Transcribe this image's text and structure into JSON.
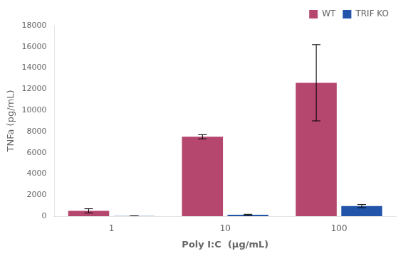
{
  "chart_data": {
    "type": "bar",
    "xlabel": "Poly I:C  (μg/mL)",
    "ylabel": "TNFa (pg/mL)",
    "categories": [
      "1",
      "10",
      "100"
    ],
    "series": [
      {
        "name": "WT",
        "color": "#b5476e",
        "values": [
          500,
          7500,
          12600
        ],
        "errors": [
          200,
          200,
          3600
        ]
      },
      {
        "name": "TRIF KO",
        "color": "#2255aa",
        "values": [
          20,
          130,
          950
        ],
        "errors": [
          10,
          50,
          150
        ]
      }
    ],
    "ylim": [
      0,
      18000
    ],
    "yticks": [
      0,
      2000,
      4000,
      6000,
      8000,
      10000,
      12000,
      14000,
      16000,
      18000
    ],
    "grid": false,
    "legend": "upper right"
  }
}
